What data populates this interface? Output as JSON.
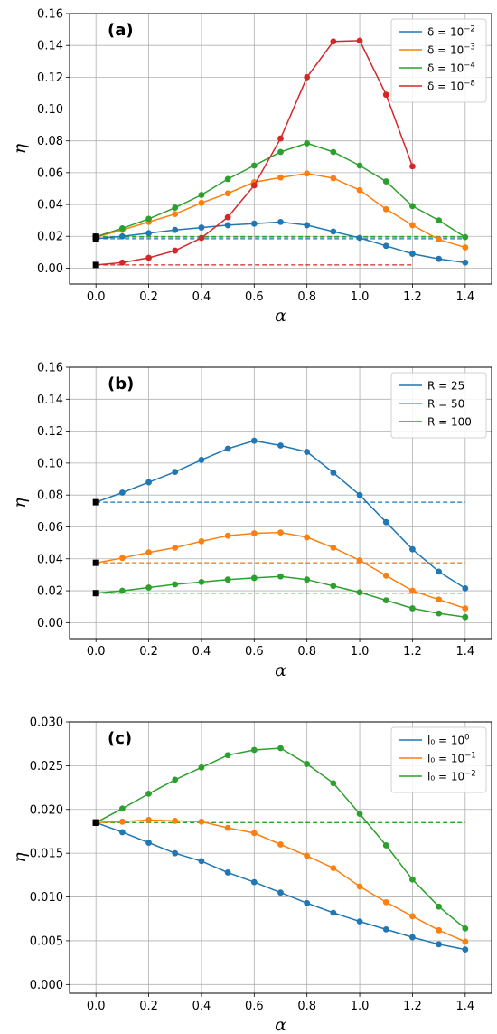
{
  "chart_data": [
    {
      "type": "line",
      "panel_label": "(a)",
      "xlabel": "α",
      "ylabel": "η",
      "xlim": [
        -0.1,
        1.5
      ],
      "ylim": [
        -0.01,
        0.16
      ],
      "xticks": [
        0.0,
        0.2,
        0.4,
        0.6,
        0.8,
        1.0,
        1.2,
        1.4
      ],
      "xtick_labels": [
        "0.0",
        "0.2",
        "0.4",
        "0.6",
        "0.8",
        "1.0",
        "1.2",
        "1.4"
      ],
      "yticks": [
        0.0,
        0.02,
        0.04,
        0.06,
        0.08,
        0.1,
        0.12,
        0.14,
        0.16
      ],
      "ytick_labels": [
        "0.00",
        "0.02",
        "0.04",
        "0.06",
        "0.08",
        "0.10",
        "0.12",
        "0.14",
        "0.16"
      ],
      "grid": true,
      "legend_position": "top-right",
      "series": [
        {
          "legend": {
            "base": "δ = 10",
            "exp": "−2"
          },
          "color": "#1f77b4",
          "x": [
            0.0,
            0.1,
            0.2,
            0.3,
            0.4,
            0.5,
            0.6,
            0.7,
            0.8,
            0.9,
            1.0,
            1.1,
            1.2,
            1.3,
            1.4
          ],
          "y": [
            0.0185,
            0.02,
            0.022,
            0.024,
            0.0255,
            0.027,
            0.028,
            0.029,
            0.027,
            0.023,
            0.019,
            0.014,
            0.009,
            0.0058,
            0.0035
          ],
          "baseline": 0.0185
        },
        {
          "legend": {
            "base": "δ = 10",
            "exp": "−3"
          },
          "color": "#ff7f0e",
          "x": [
            0.0,
            0.1,
            0.2,
            0.3,
            0.4,
            0.5,
            0.6,
            0.7,
            0.8,
            0.9,
            1.0,
            1.1,
            1.2,
            1.3,
            1.4
          ],
          "y": [
            0.0195,
            0.024,
            0.029,
            0.034,
            0.041,
            0.047,
            0.054,
            0.057,
            0.0595,
            0.0565,
            0.049,
            0.037,
            0.027,
            0.018,
            0.013
          ],
          "baseline": 0.0195
        },
        {
          "legend": {
            "base": "δ = 10",
            "exp": "−4"
          },
          "color": "#2ca02c",
          "x": [
            0.0,
            0.1,
            0.2,
            0.3,
            0.4,
            0.5,
            0.6,
            0.7,
            0.8,
            0.9,
            1.0,
            1.1,
            1.2,
            1.3,
            1.4
          ],
          "y": [
            0.0198,
            0.025,
            0.031,
            0.038,
            0.046,
            0.056,
            0.0645,
            0.073,
            0.0785,
            0.073,
            0.0645,
            0.0545,
            0.039,
            0.03,
            0.0195
          ],
          "baseline": 0.0198
        },
        {
          "legend": {
            "base": "δ = 10",
            "exp": "−8"
          },
          "color": "#d62728",
          "x": [
            0.0,
            0.1,
            0.2,
            0.3,
            0.4,
            0.5,
            0.6,
            0.7,
            0.8,
            0.9,
            1.0,
            1.1,
            1.2
          ],
          "y": [
            0.002,
            0.0035,
            0.0065,
            0.011,
            0.019,
            0.032,
            0.052,
            0.0815,
            0.12,
            0.1425,
            0.143,
            0.109,
            0.064
          ],
          "baseline": 0.002
        }
      ]
    },
    {
      "type": "line",
      "panel_label": "(b)",
      "xlabel": "α",
      "ylabel": "η",
      "xlim": [
        -0.1,
        1.5
      ],
      "ylim": [
        -0.01,
        0.16
      ],
      "xticks": [
        0.0,
        0.2,
        0.4,
        0.6,
        0.8,
        1.0,
        1.2,
        1.4
      ],
      "xtick_labels": [
        "0.0",
        "0.2",
        "0.4",
        "0.6",
        "0.8",
        "1.0",
        "1.2",
        "1.4"
      ],
      "yticks": [
        0.0,
        0.02,
        0.04,
        0.06,
        0.08,
        0.1,
        0.12,
        0.14,
        0.16
      ],
      "ytick_labels": [
        "0.00",
        "0.02",
        "0.04",
        "0.06",
        "0.08",
        "0.10",
        "0.12",
        "0.14",
        "0.16"
      ],
      "grid": true,
      "legend_position": "top-right",
      "series": [
        {
          "legend": {
            "base": "R = 25",
            "exp": ""
          },
          "color": "#1f77b4",
          "x": [
            0.0,
            0.1,
            0.2,
            0.3,
            0.4,
            0.5,
            0.6,
            0.7,
            0.8,
            0.9,
            1.0,
            1.1,
            1.2,
            1.3,
            1.4
          ],
          "y": [
            0.0755,
            0.0815,
            0.088,
            0.0945,
            0.102,
            0.109,
            0.114,
            0.111,
            0.107,
            0.094,
            0.08,
            0.063,
            0.046,
            0.032,
            0.0215
          ],
          "baseline": 0.0755
        },
        {
          "legend": {
            "base": "R = 50",
            "exp": ""
          },
          "color": "#ff7f0e",
          "x": [
            0.0,
            0.1,
            0.2,
            0.3,
            0.4,
            0.5,
            0.6,
            0.7,
            0.8,
            0.9,
            1.0,
            1.1,
            1.2,
            1.3,
            1.4
          ],
          "y": [
            0.0375,
            0.0405,
            0.044,
            0.047,
            0.051,
            0.0545,
            0.056,
            0.0565,
            0.0535,
            0.047,
            0.039,
            0.0295,
            0.02,
            0.0145,
            0.009
          ],
          "baseline": 0.0375
        },
        {
          "legend": {
            "base": "R = 100",
            "exp": ""
          },
          "color": "#2ca02c",
          "x": [
            0.0,
            0.1,
            0.2,
            0.3,
            0.4,
            0.5,
            0.6,
            0.7,
            0.8,
            0.9,
            1.0,
            1.1,
            1.2,
            1.3,
            1.4
          ],
          "y": [
            0.0185,
            0.02,
            0.022,
            0.024,
            0.0255,
            0.027,
            0.028,
            0.029,
            0.027,
            0.023,
            0.019,
            0.014,
            0.009,
            0.0058,
            0.0035
          ],
          "baseline": 0.0185
        }
      ]
    },
    {
      "type": "line",
      "panel_label": "(c)",
      "xlabel": "α",
      "ylabel": "η",
      "xlim": [
        -0.1,
        1.5
      ],
      "ylim": [
        -0.001,
        0.03
      ],
      "xticks": [
        0.0,
        0.2,
        0.4,
        0.6,
        0.8,
        1.0,
        1.2,
        1.4
      ],
      "xtick_labels": [
        "0.0",
        "0.2",
        "0.4",
        "0.6",
        "0.8",
        "1.0",
        "1.2",
        "1.4"
      ],
      "yticks": [
        0.0,
        0.005,
        0.01,
        0.015,
        0.02,
        0.025,
        0.03
      ],
      "ytick_labels": [
        "0.000",
        "0.005",
        "0.010",
        "0.015",
        "0.020",
        "0.025",
        "0.030"
      ],
      "grid": true,
      "legend_position": "top-right",
      "series": [
        {
          "legend": {
            "base": "l₀ = 10",
            "exp": "0"
          },
          "color": "#1f77b4",
          "x": [
            0.0,
            0.1,
            0.2,
            0.3,
            0.4,
            0.5,
            0.6,
            0.7,
            0.8,
            0.9,
            1.0,
            1.1,
            1.2,
            1.3,
            1.4
          ],
          "y": [
            0.0185,
            0.0174,
            0.0162,
            0.015,
            0.0141,
            0.0128,
            0.0117,
            0.0105,
            0.0093,
            0.0082,
            0.0072,
            0.0063,
            0.0054,
            0.0046,
            0.004
          ],
          "baseline": null
        },
        {
          "legend": {
            "base": "l₀ = 10",
            "exp": "−1"
          },
          "color": "#ff7f0e",
          "x": [
            0.0,
            0.1,
            0.2,
            0.3,
            0.4,
            0.5,
            0.6,
            0.7,
            0.8,
            0.9,
            1.0,
            1.1,
            1.2,
            1.3,
            1.4
          ],
          "y": [
            0.0185,
            0.0186,
            0.0188,
            0.0187,
            0.0186,
            0.0179,
            0.0173,
            0.016,
            0.0147,
            0.0133,
            0.0112,
            0.0094,
            0.0078,
            0.0062,
            0.0049
          ],
          "baseline": null
        },
        {
          "legend": {
            "base": "l₀ = 10",
            "exp": "−2"
          },
          "color": "#2ca02c",
          "x": [
            0.0,
            0.1,
            0.2,
            0.3,
            0.4,
            0.5,
            0.6,
            0.7,
            0.8,
            0.9,
            1.0,
            1.1,
            1.2,
            1.3,
            1.4
          ],
          "y": [
            0.0185,
            0.0201,
            0.0218,
            0.0234,
            0.0248,
            0.0262,
            0.0268,
            0.027,
            0.0252,
            0.023,
            0.0195,
            0.0159,
            0.012,
            0.0089,
            0.0064
          ],
          "baseline": 0.0185
        }
      ]
    }
  ]
}
